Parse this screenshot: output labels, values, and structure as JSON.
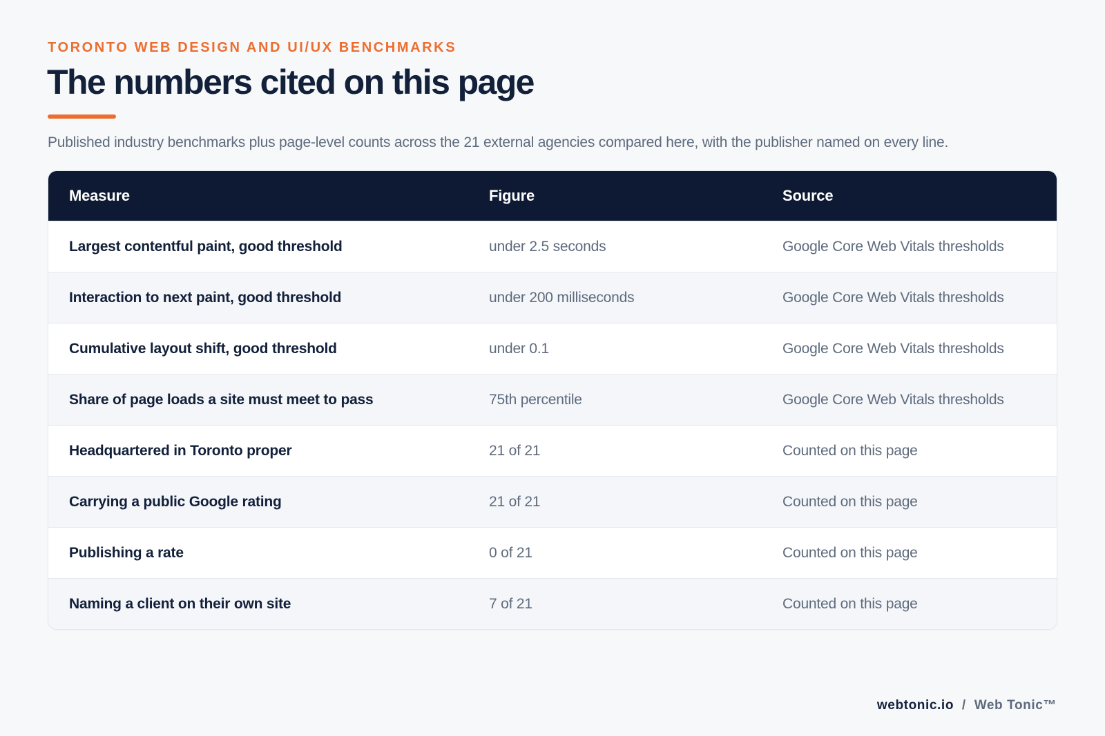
{
  "header": {
    "eyebrow": "TORONTO WEB DESIGN AND UI/UX BENCHMARKS",
    "title": "The numbers cited on this page",
    "subtitle": "Published industry benchmarks plus page-level counts across the 21 external agencies compared here, with the publisher named on every line."
  },
  "table": {
    "columns": [
      "Measure",
      "Figure",
      "Source"
    ],
    "rows": [
      {
        "measure": "Largest contentful paint, good threshold",
        "figure": "under 2.5 seconds",
        "source": "Google Core Web Vitals thresholds"
      },
      {
        "measure": "Interaction to next paint, good threshold",
        "figure": "under 200 milliseconds",
        "source": "Google Core Web Vitals thresholds"
      },
      {
        "measure": "Cumulative layout shift, good threshold",
        "figure": "under 0.1",
        "source": "Google Core Web Vitals thresholds"
      },
      {
        "measure": "Share of page loads a site must meet to pass",
        "figure": "75th percentile",
        "source": "Google Core Web Vitals thresholds"
      },
      {
        "measure": "Headquartered in Toronto proper",
        "figure": "21 of 21",
        "source": "Counted on this page"
      },
      {
        "measure": "Carrying a public Google rating",
        "figure": "21 of 21",
        "source": "Counted on this page"
      },
      {
        "measure": "Publishing a rate",
        "figure": "0 of 21",
        "source": "Counted on this page"
      },
      {
        "measure": "Naming a client on their own site",
        "figure": "7 of 21",
        "source": "Counted on this page"
      }
    ]
  },
  "footer": {
    "domain": "webtonic.io",
    "separator": "/",
    "brand": "Web Tonic™"
  },
  "colors": {
    "accent": "#ec6e2f",
    "header_bg": "#0e1a33",
    "page_bg": "#f6f8fa"
  }
}
